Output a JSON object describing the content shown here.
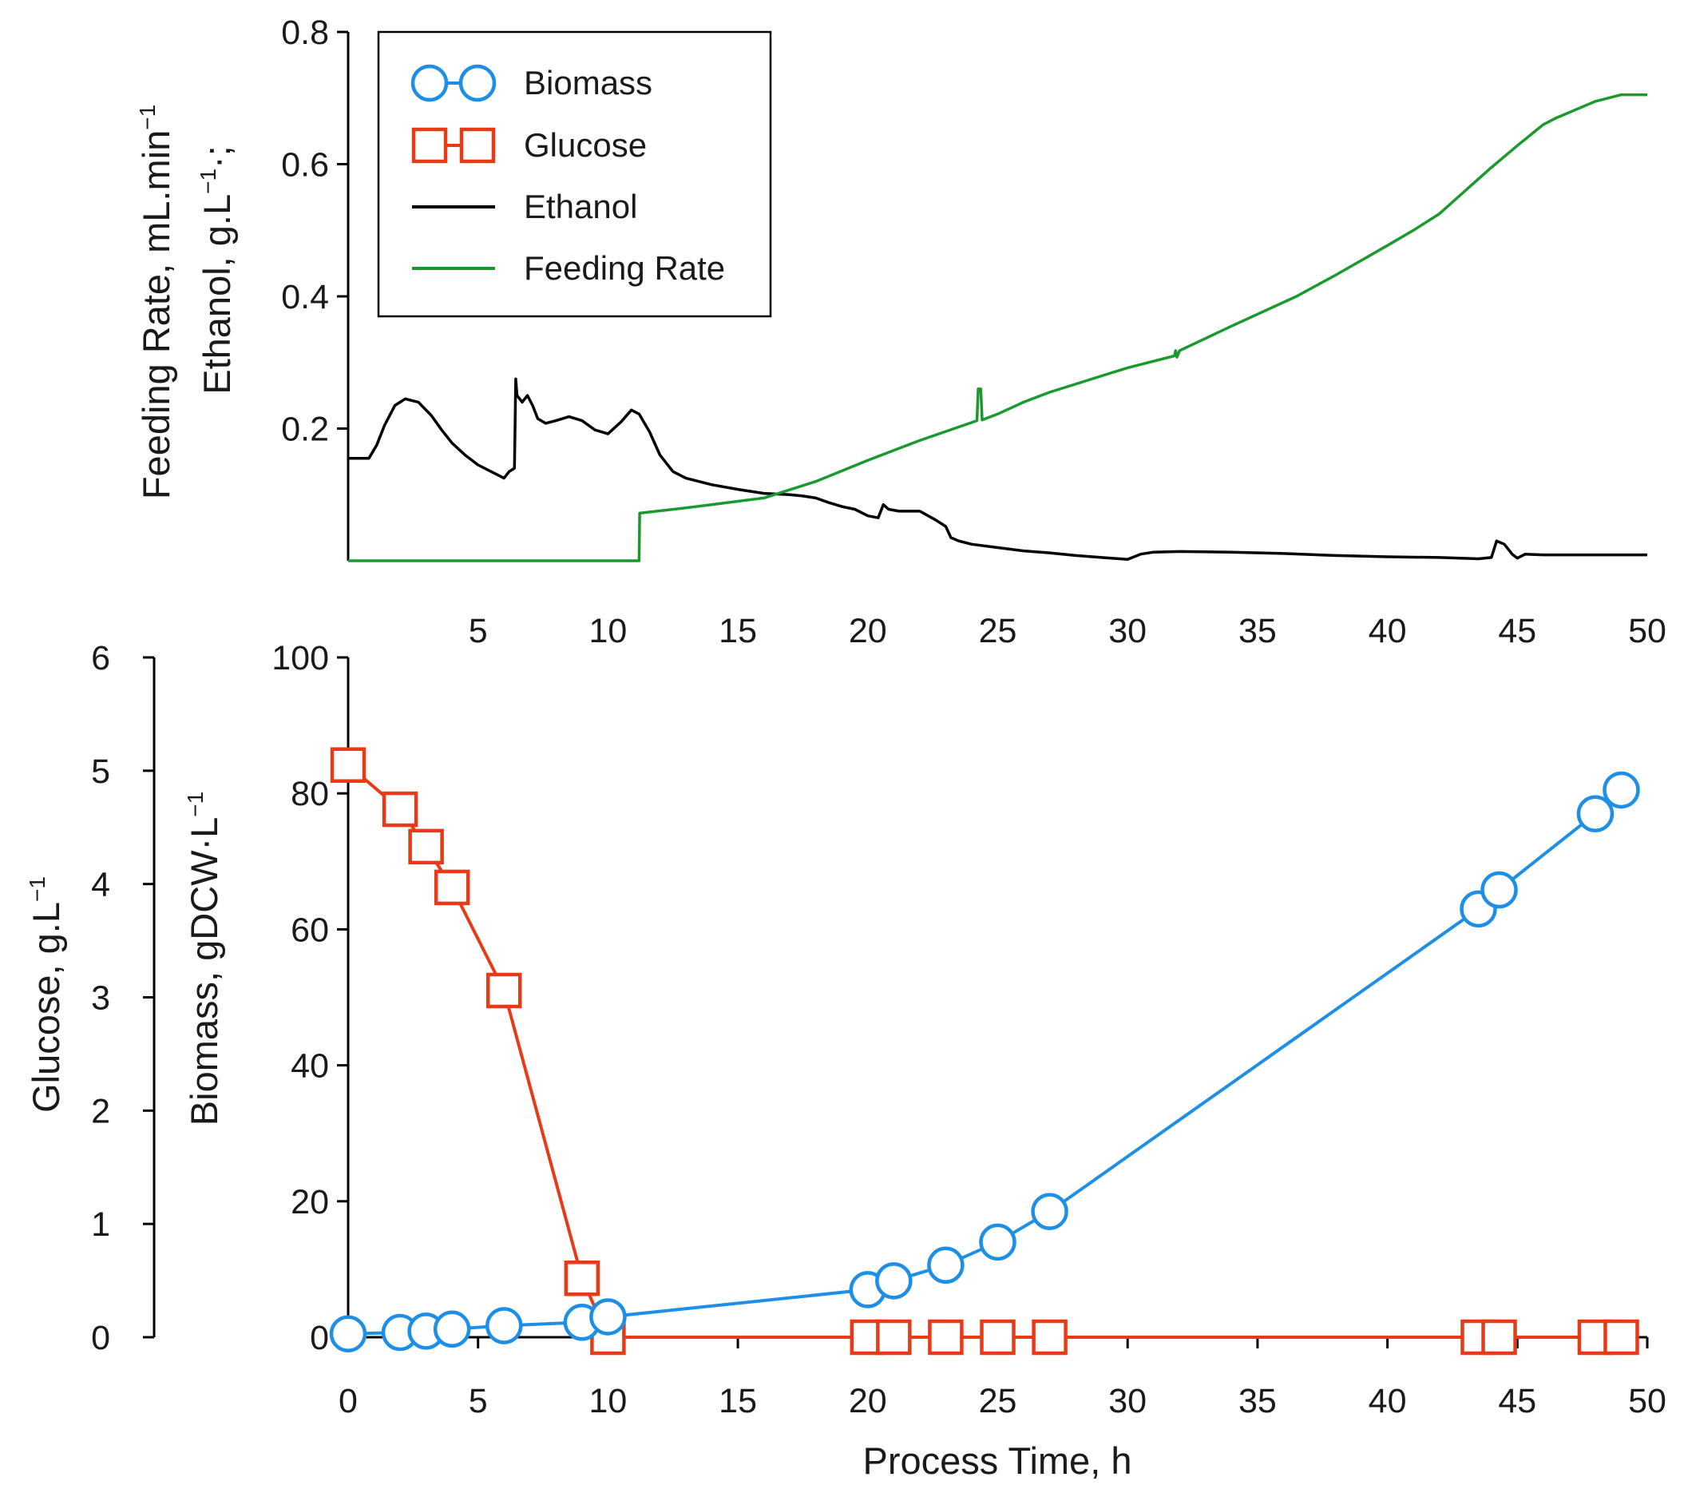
{
  "chart_data": [
    {
      "type": "line",
      "title": "",
      "xlabel": "",
      "ylabel": "Feeding Rate, mL.min⁻¹ Ethanol, g.L⁻¹·;",
      "ylabel_line1": "Feeding Rate, mL.min",
      "ylabel_line2": "Ethanol, g.L",
      "ylabel_sup": "−1",
      "ylabel_line2_tail": "·;",
      "xlim": [
        0,
        50
      ],
      "ylim": [
        0,
        0.8
      ],
      "x_ticks": [
        5,
        10,
        15,
        20,
        25,
        30,
        35,
        40,
        45,
        50
      ],
      "y_ticks": [
        0.2,
        0.4,
        0.6,
        0.8
      ],
      "y_tick_labels": [
        "0.2",
        "0.4",
        "0.6",
        "0.8"
      ],
      "legend_position": "top-left",
      "series": [
        {
          "name": "Ethanol",
          "color": "#000000",
          "x": [
            0,
            0.8,
            1.1,
            1.4,
            1.8,
            2.2,
            2.7,
            3.2,
            3.6,
            4.0,
            4.5,
            5.0,
            5.5,
            6.0,
            6.2,
            6.4,
            6.45,
            6.5,
            6.7,
            6.9,
            7.1,
            7.3,
            7.6,
            8.0,
            8.5,
            9.0,
            9.5,
            10.0,
            10.5,
            10.9,
            11.2,
            11.6,
            12.0,
            12.5,
            13.0,
            14.0,
            15.0,
            16.0,
            17.0,
            17.5,
            18.0,
            18.5,
            19.0,
            19.5,
            20.0,
            20.4,
            20.6,
            20.8,
            21.2,
            22.0,
            22.6,
            23.0,
            23.2,
            23.5,
            24.0,
            25.0,
            26.0,
            27.0,
            28.0,
            29.0,
            30.0,
            30.5,
            31.0,
            32.0,
            34.0,
            36.0,
            38.0,
            40.0,
            42.0,
            43.5,
            44.0,
            44.2,
            44.5,
            44.8,
            45.0,
            45.3,
            46.0,
            48.0,
            50.0
          ],
          "y": [
            0.155,
            0.155,
            0.175,
            0.205,
            0.235,
            0.245,
            0.24,
            0.22,
            0.198,
            0.178,
            0.16,
            0.145,
            0.135,
            0.125,
            0.135,
            0.14,
            0.275,
            0.25,
            0.24,
            0.25,
            0.235,
            0.215,
            0.208,
            0.212,
            0.218,
            0.212,
            0.198,
            0.192,
            0.21,
            0.228,
            0.222,
            0.195,
            0.16,
            0.135,
            0.125,
            0.115,
            0.108,
            0.102,
            0.1,
            0.098,
            0.095,
            0.088,
            0.082,
            0.078,
            0.068,
            0.065,
            0.085,
            0.078,
            0.075,
            0.075,
            0.062,
            0.052,
            0.035,
            0.03,
            0.025,
            0.02,
            0.015,
            0.012,
            0.008,
            0.005,
            0.002,
            0.01,
            0.013,
            0.014,
            0.013,
            0.011,
            0.008,
            0.006,
            0.005,
            0.003,
            0.005,
            0.03,
            0.025,
            0.01,
            0.004,
            0.01,
            0.009,
            0.009,
            0.009
          ]
        },
        {
          "name": "Feeding Rate",
          "color": "#1a9a2e",
          "x": [
            0,
            11.2,
            11.22,
            13.0,
            16.0,
            18.0,
            20.0,
            22.0,
            24.2,
            24.25,
            24.35,
            24.4,
            25.0,
            26.0,
            27.0,
            30.0,
            31.8,
            31.85,
            31.9,
            32.0,
            34.0,
            36.5,
            38.0,
            40.0,
            41.0,
            42.0,
            43.0,
            44.0,
            45.0,
            46.0,
            46.5,
            48.0,
            49.0,
            50.0
          ],
          "y": [
            0,
            0,
            0.072,
            0.08,
            0.095,
            0.12,
            0.152,
            0.182,
            0.212,
            0.26,
            0.26,
            0.213,
            0.222,
            0.24,
            0.255,
            0.292,
            0.31,
            0.318,
            0.308,
            0.318,
            0.355,
            0.4,
            0.432,
            0.477,
            0.5,
            0.525,
            0.56,
            0.595,
            0.628,
            0.66,
            0.67,
            0.695,
            0.705,
            0.705
          ]
        }
      ]
    },
    {
      "type": "line",
      "title": "",
      "xlabel": "Process Time, h",
      "ylabel": "Biomass, gDCW·L⁻¹",
      "ylabel_main": "Biomass, gDCW·L",
      "ylabel_sup": "−1",
      "y2label": "Glucose, g.L⁻¹",
      "y2label_main": "Glucose, g.L",
      "y2label_sup": "−1",
      "xlim": [
        0,
        50
      ],
      "ylim": [
        0,
        100
      ],
      "y2lim": [
        0,
        6
      ],
      "x_ticks": [
        0,
        5,
        10,
        15,
        20,
        25,
        30,
        35,
        40,
        45,
        50
      ],
      "y_ticks": [
        0,
        20,
        40,
        60,
        80,
        100
      ],
      "y2_ticks": [
        0,
        1,
        2,
        3,
        4,
        5,
        6
      ],
      "series": [
        {
          "name": "Biomass",
          "axis": "left",
          "color": "#1e8fe6",
          "marker": "circle",
          "x": [
            0,
            2,
            3,
            4,
            6,
            9,
            10,
            20,
            21,
            23,
            25,
            27,
            43.5,
            44.3,
            48,
            49
          ],
          "y": [
            0.5,
            0.7,
            0.9,
            1.2,
            1.7,
            2.2,
            3.0,
            7.0,
            8.3,
            10.6,
            14.0,
            18.5,
            63.0,
            65.8,
            77.0,
            80.5
          ]
        },
        {
          "name": "Glucose",
          "axis": "right",
          "color": "#e83a17",
          "marker": "square",
          "x": [
            0,
            2,
            3,
            4,
            6,
            9,
            10,
            20,
            21,
            23,
            25,
            27,
            43.5,
            44.3,
            48,
            49
          ],
          "y": [
            5.05,
            4.66,
            4.33,
            3.97,
            3.06,
            0.52,
            0,
            0,
            0,
            0,
            0,
            0,
            0,
            0,
            0,
            0
          ]
        }
      ]
    }
  ],
  "legend": {
    "items": [
      {
        "label": "Biomass",
        "color": "#1e8fe6",
        "marker": "circle"
      },
      {
        "label": "Glucose",
        "color": "#e83a17",
        "marker": "square"
      },
      {
        "label": "Ethanol",
        "color": "#000000",
        "marker": "line"
      },
      {
        "label": "Feeding Rate",
        "color": "#1a9a2e",
        "marker": "line"
      }
    ]
  }
}
